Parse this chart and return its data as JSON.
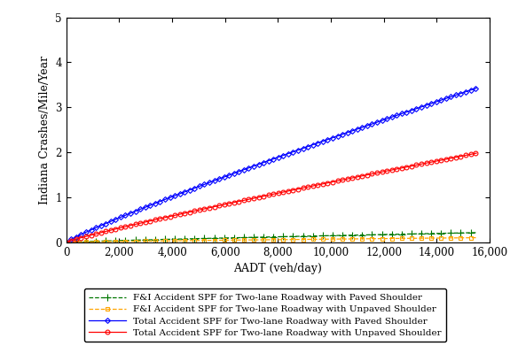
{
  "title": "",
  "xlabel": "AADT (veh/day)",
  "ylabel": "Indiana Crashes/Mile/Year",
  "xlim": [
    0,
    15500
  ],
  "ylim": [
    0,
    5
  ],
  "xticks": [
    0,
    2000,
    4000,
    6000,
    8000,
    10000,
    12000,
    14000,
    16000
  ],
  "yticks": [
    0,
    1,
    2,
    3,
    4,
    5
  ],
  "spf_params": [
    {
      "label": "F&I Accident SPF for Two-lane Roadway with Paved Shoulder",
      "color": "#007700",
      "linestyle": "--",
      "marker": "+",
      "ms": 6,
      "markevery": 12,
      "a": 5.52e-05,
      "b": 0.856
    },
    {
      "label": "F&I Accident SPF for Two-lane Roadway with Unpaved Shoulder",
      "color": "#FFA500",
      "linestyle": "--",
      "marker": "s",
      "ms": 3.5,
      "markevery": 12,
      "a": 2.6e-05,
      "b": 0.856
    },
    {
      "label": "Total Accident SPF for Two-lane Roadway with Paved Shoulder",
      "color": "#0000FF",
      "linestyle": "-",
      "marker": "D",
      "ms": 3,
      "markevery": 6,
      "a": 0.00058,
      "b": 0.9
    },
    {
      "label": "Total Accident SPF for Two-lane Roadway with Unpaved Shoulder",
      "color": "#FF0000",
      "linestyle": "-",
      "marker": "o",
      "ms": 3.5,
      "markevery": 6,
      "a": 0.000335,
      "b": 0.9
    }
  ],
  "background_color": "#ffffff",
  "plot_bg_color": "#ffffff",
  "legend_fontsize": 7.5,
  "axis_fontsize": 9,
  "tick_fontsize": 8.5
}
